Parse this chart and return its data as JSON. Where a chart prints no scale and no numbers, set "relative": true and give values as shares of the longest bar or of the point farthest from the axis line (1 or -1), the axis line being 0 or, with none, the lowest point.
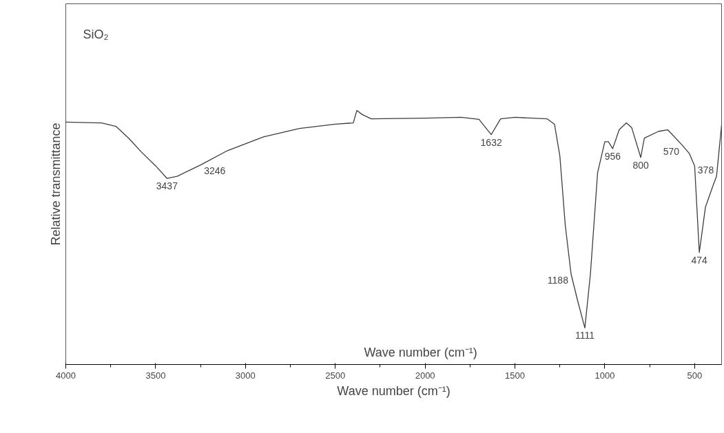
{
  "chart_data": {
    "type": "line",
    "relative": true,
    "xlabel": "Wave number (cm⁻¹)",
    "ylabel": "Relative transmittance",
    "xlim": [
      4000,
      350
    ],
    "xticks": [
      4000,
      3500,
      3000,
      2500,
      2000,
      1500,
      1000,
      500
    ],
    "grid": false,
    "marker": "none",
    "line_style": "solid",
    "series": [
      {
        "color": "#3c3c3c",
        "x": [
          4000,
          3800,
          3720,
          3650,
          3580,
          3500,
          3437,
          3380,
          3246,
          3100,
          2900,
          2700,
          2500,
          2400,
          2380,
          2350,
          2300,
          2000,
          1800,
          1700,
          1632,
          1580,
          1500,
          1320,
          1280,
          1250,
          1220,
          1188,
          1150,
          1111,
          1080,
          1040,
          1000,
          980,
          956,
          920,
          880,
          850,
          800,
          780,
          700,
          650,
          570,
          530,
          500,
          474,
          440,
          400,
          378,
          350
        ],
        "values": [
          0.954,
          0.951,
          0.937,
          0.891,
          0.837,
          0.782,
          0.733,
          0.741,
          0.787,
          0.842,
          0.896,
          0.929,
          0.946,
          0.951,
          1.0,
          0.984,
          0.967,
          0.97,
          0.973,
          0.965,
          0.905,
          0.967,
          0.973,
          0.967,
          0.946,
          0.82,
          0.548,
          0.357,
          0.248,
          0.144,
          0.357,
          0.755,
          0.877,
          0.877,
          0.85,
          0.924,
          0.951,
          0.932,
          0.815,
          0.891,
          0.918,
          0.924,
          0.864,
          0.831,
          0.782,
          0.441,
          0.619,
          0.7,
          0.741,
          0.942
        ]
      }
    ],
    "annotations": [
      "SiO₂",
      "Wave number (cm⁻¹)",
      {
        "text": "3437",
        "x": 3437,
        "y": 0.733
      },
      {
        "text": "3246",
        "x": 3246,
        "y": 0.787
      },
      {
        "text": "1632",
        "x": 1632,
        "y": 0.905
      },
      {
        "text": "1188",
        "x": 1188,
        "y": 0.357
      },
      {
        "text": "1111",
        "x": 1111,
        "y": 0.144
      },
      {
        "text": "956",
        "x": 956,
        "y": 0.85
      },
      {
        "text": "800",
        "x": 800,
        "y": 0.815
      },
      {
        "text": "570",
        "x": 570,
        "y": 0.864
      },
      {
        "text": "474",
        "x": 474,
        "y": 0.441
      },
      {
        "text": "378",
        "x": 378,
        "y": 0.741
      }
    ]
  }
}
